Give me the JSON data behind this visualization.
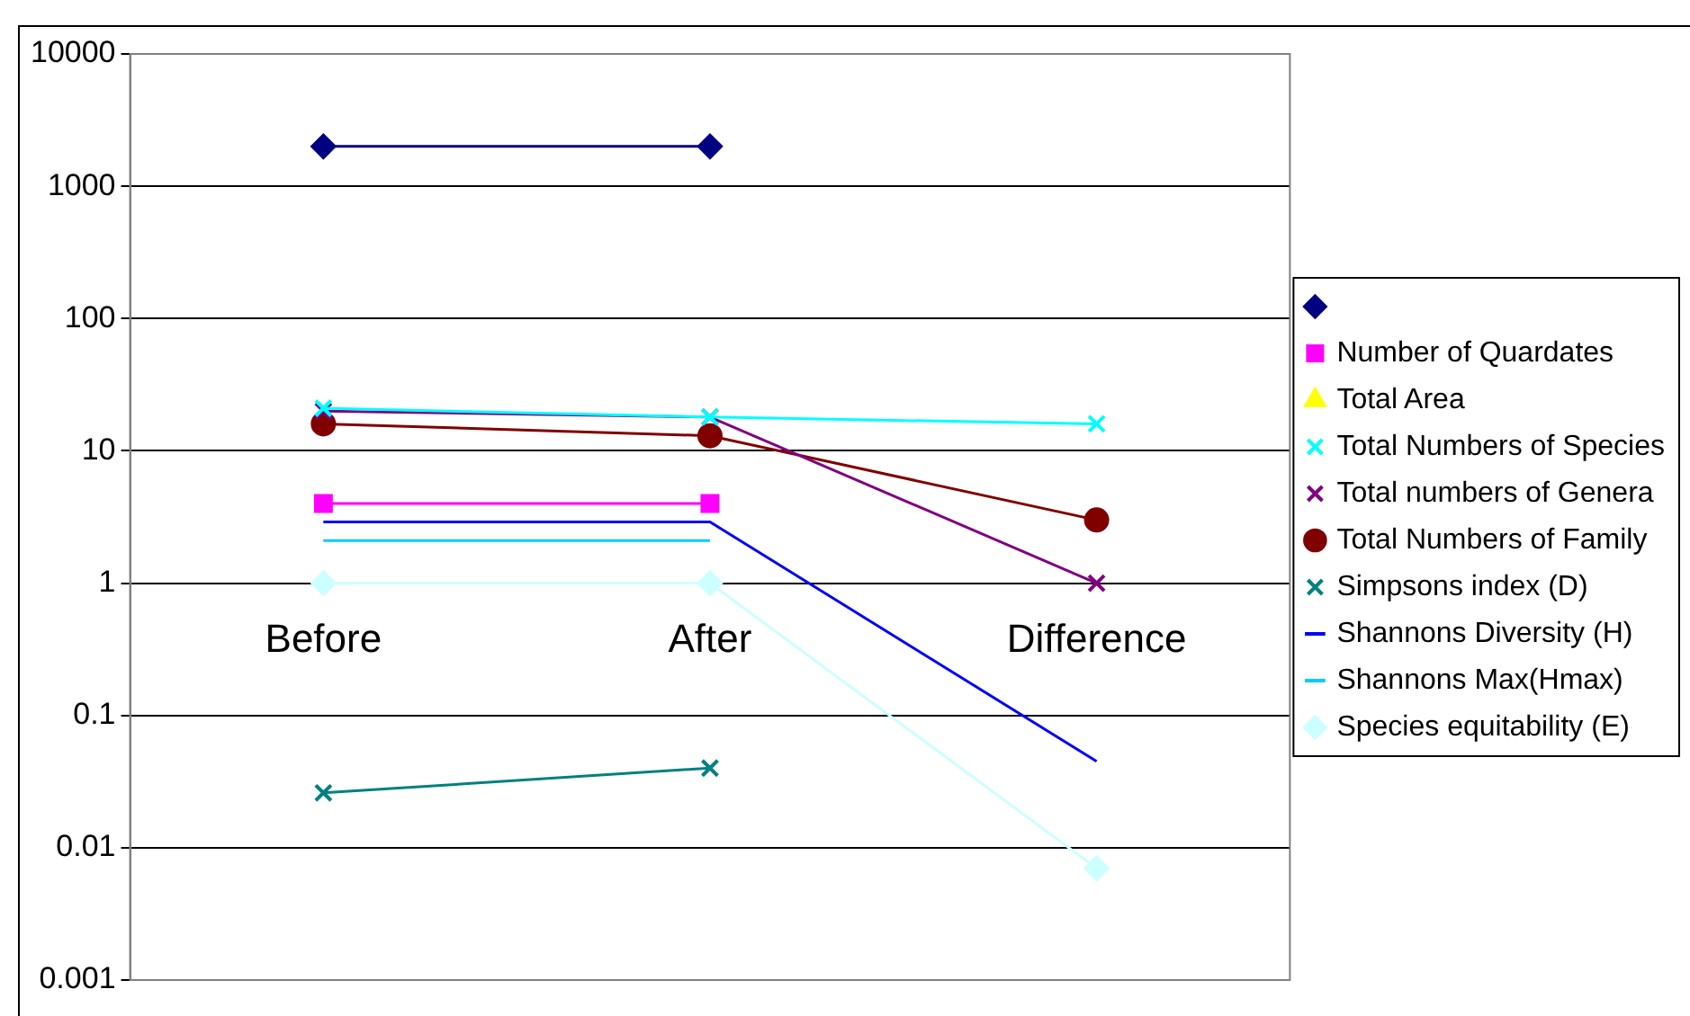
{
  "chart_data": {
    "type": "line",
    "categories": [
      "Before",
      "After",
      "Difference"
    ],
    "log": true,
    "ylim": [
      0.001,
      10000
    ],
    "yticks": [
      0.001,
      0.01,
      0.1,
      1,
      10,
      100,
      1000,
      10000
    ],
    "grid": "y",
    "legend": "right",
    "series": [
      {
        "color": "#000080",
        "marker": "diamond",
        "values": [
          2000,
          2000,
          null
        ]
      },
      {
        "name": "Number of Quardates",
        "color": "#ff00ff",
        "marker": "square",
        "values": [
          4,
          4,
          null
        ]
      },
      {
        "name": "Total Area",
        "color": "#ffff00",
        "marker": "triangle",
        "values": [
          null,
          null,
          null
        ]
      },
      {
        "name": "Total Numbers of Species",
        "color": "#00ffff",
        "marker": "cross",
        "values": [
          21,
          18,
          16
        ]
      },
      {
        "name": "Total numbers of Genera",
        "color": "#800080",
        "marker": "cross",
        "values": [
          20,
          18,
          1
        ]
      },
      {
        "name": "Total Numbers of Family",
        "color": "#800000",
        "marker": "circle",
        "values": [
          16,
          13,
          3
        ]
      },
      {
        "name": "Simpsons index (D)",
        "color": "#008080",
        "marker": "cross",
        "values": [
          0.026,
          0.04,
          null
        ]
      },
      {
        "name": "Shannons Diversity (H)",
        "color": "#0000ff",
        "marker": "none",
        "values": [
          2.9,
          2.9,
          0.045
        ]
      },
      {
        "name": "Shannons Max(Hmax)",
        "color": "#00ccff",
        "marker": "none",
        "values": [
          2.1,
          2.1,
          null
        ]
      },
      {
        "name": "Species equitability (E)",
        "color": "#ccffff",
        "marker": "diamond",
        "values": [
          1,
          1,
          0.007
        ]
      }
    ]
  }
}
